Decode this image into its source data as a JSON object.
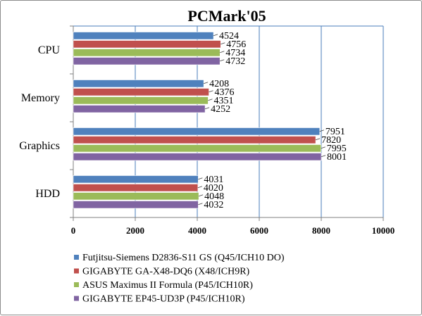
{
  "chart_data": {
    "type": "bar",
    "orientation": "horizontal",
    "title": "PCMark'05",
    "categories": [
      "CPU",
      "Memory",
      "Graphics",
      "HDD"
    ],
    "series": [
      {
        "name": "Futjitsu-Siemens D2836-S11 GS (Q45/ICH10 DO)",
        "color": "#4f81bd",
        "values": [
          4524,
          4208,
          7951,
          4031
        ]
      },
      {
        "name": "GIGABYTE GA-X48-DQ6 (X48/ICH9R)",
        "color": "#c0504d",
        "values": [
          4756,
          4376,
          7820,
          4020
        ]
      },
      {
        "name": "ASUS Maximus II Formula (P45/ICH10R)",
        "color": "#9bbb59",
        "values": [
          4734,
          4351,
          7995,
          4048
        ]
      },
      {
        "name": "GIGABYTE EP45-UD3P (P45/ICH10R)",
        "color": "#8064a2",
        "values": [
          4732,
          4252,
          8001,
          4032
        ]
      }
    ],
    "xlim": [
      0,
      10000
    ],
    "xticks": [
      0,
      2000,
      4000,
      6000,
      8000,
      10000
    ],
    "grid": "vertical",
    "legend_position": "bottom"
  }
}
